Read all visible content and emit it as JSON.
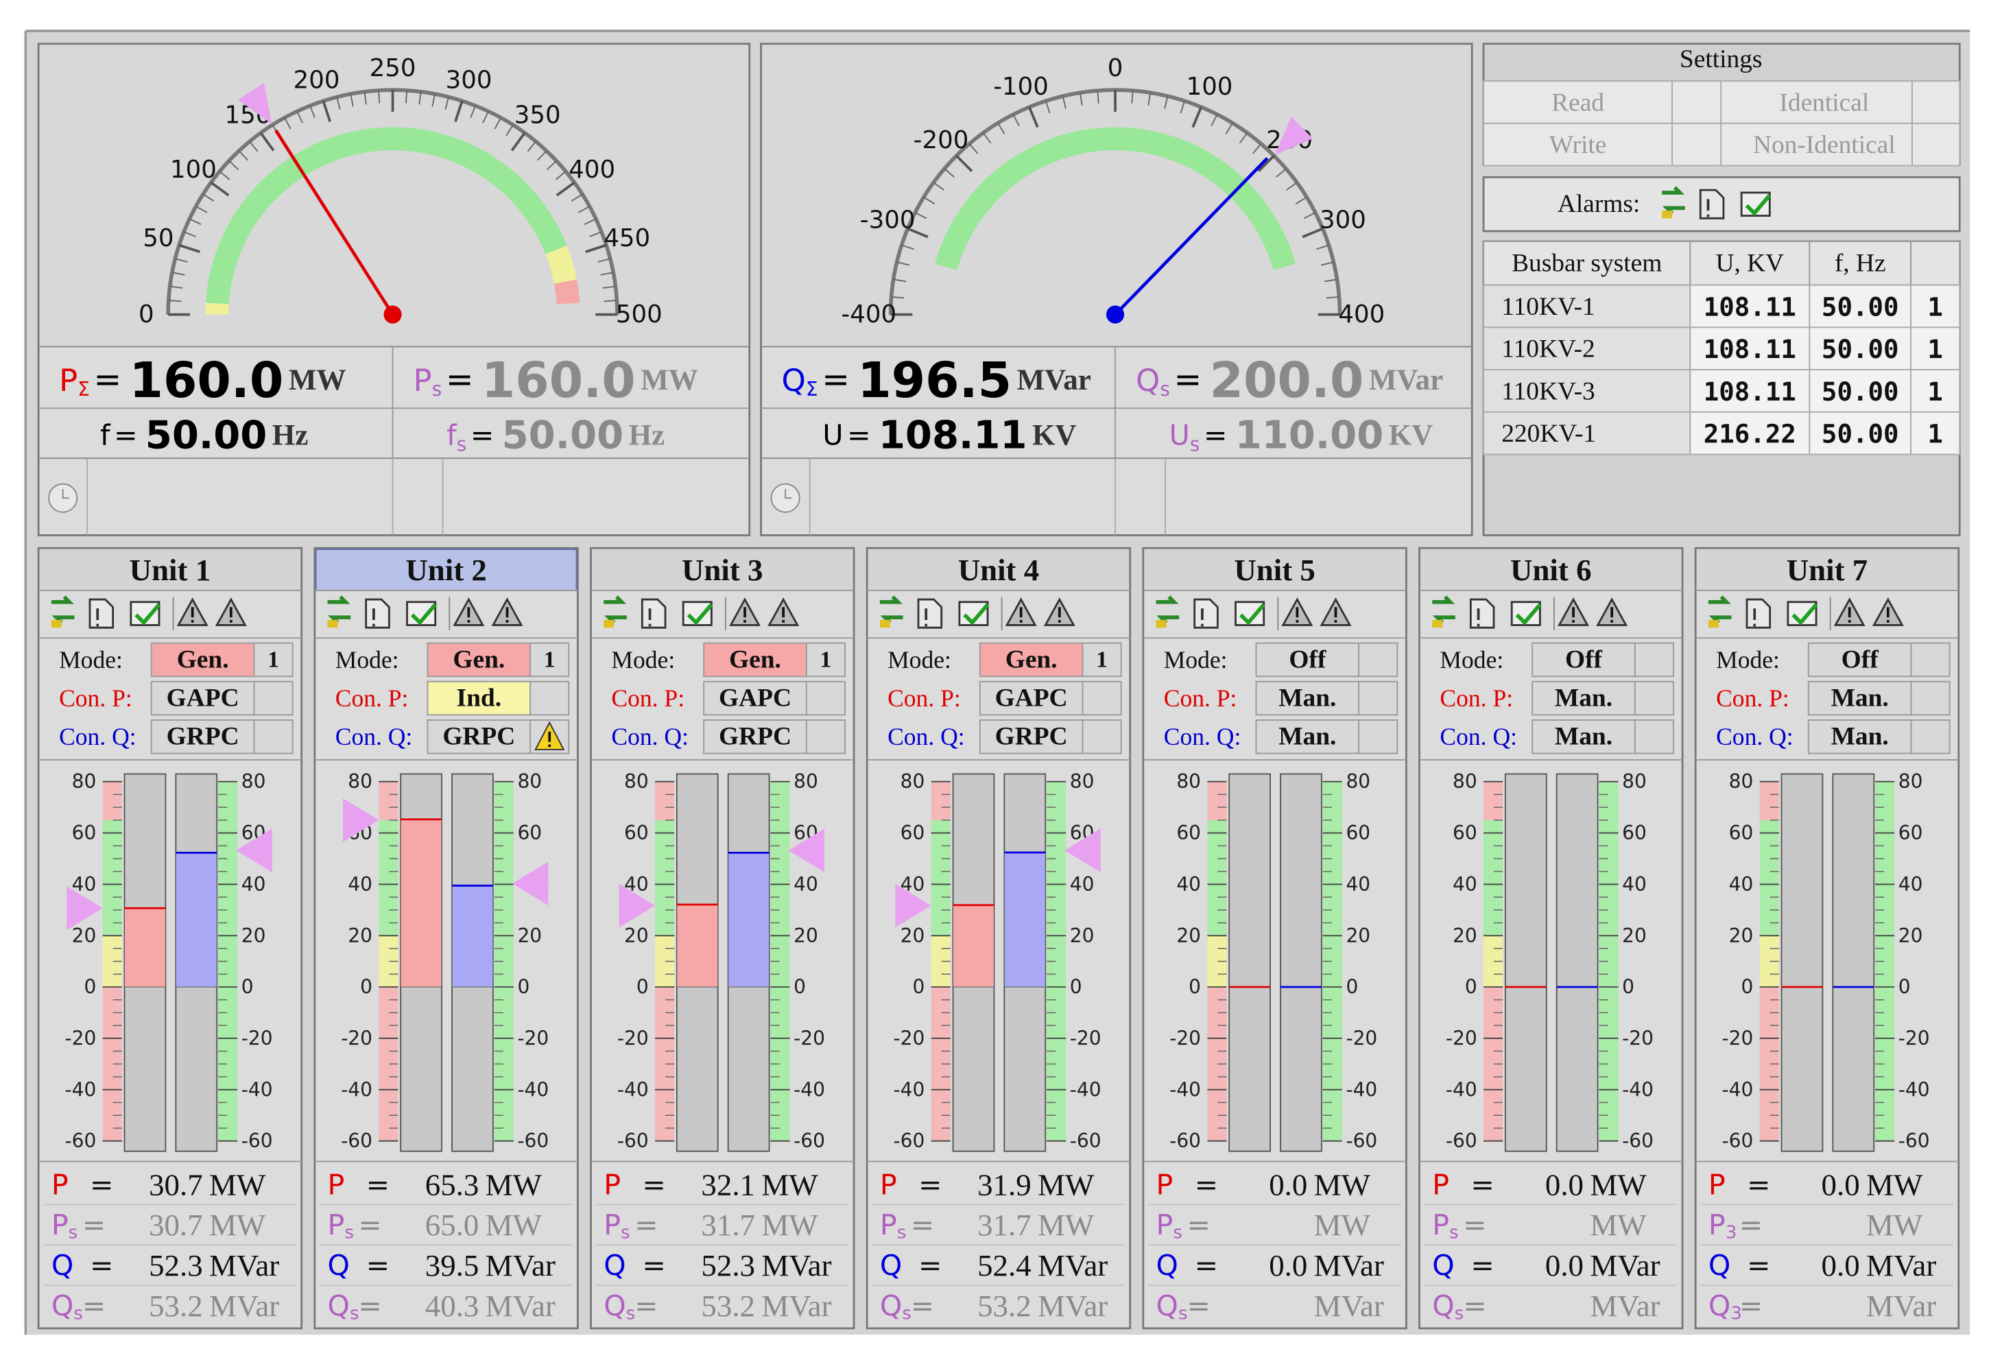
{
  "equals": "=",
  "gauges": [
    {
      "ticks": [
        0,
        50,
        100,
        150,
        200,
        250,
        300,
        350,
        400,
        450,
        500
      ],
      "bands": [
        {
          "from": 10,
          "to": 440,
          "color": "#98e898"
        },
        {
          "from": 0,
          "to": 10,
          "color": "#f0f098"
        },
        {
          "from": 440,
          "to": 470,
          "color": "#f0f098"
        },
        {
          "from": 470,
          "to": 490,
          "color": "#f4a8a8"
        }
      ],
      "needle_color": "#e00000",
      "readouts": [
        {
          "label": "P",
          "sub": "Σ",
          "value": "160.0",
          "unit": "MW",
          "color": "#e00000",
          "value_color": "#000000"
        },
        {
          "label": "P",
          "sub": "s",
          "value": "160.0",
          "unit": "MW",
          "color": "#b060c0",
          "value_color": "#8a8a8a"
        },
        {
          "label": "f",
          "value": "50.00",
          "unit": "Hz",
          "color": "#000000",
          "value_color": "#000000"
        },
        {
          "label": "f",
          "sub": "s",
          "value": "50.00",
          "unit": "Hz",
          "color": "#b060c0",
          "value_color": "#8a8a8a"
        }
      ]
    },
    {
      "ticks": [
        -400,
        -300,
        -200,
        -100,
        0,
        100,
        200,
        300,
        400
      ],
      "bands": [
        {
          "from": -330,
          "to": 330,
          "color": "#98e898"
        }
      ],
      "needle_color": "#0000e0",
      "readouts": [
        {
          "label": "Q",
          "sub": "Σ",
          "value": "196.5",
          "unit": "MVar",
          "color": "#0000e0",
          "value_color": "#000000"
        },
        {
          "label": "Q",
          "sub": "s",
          "value": "200.0",
          "unit": "MVar",
          "color": "#b060c0",
          "value_color": "#8a8a8a"
        },
        {
          "label": "U",
          "value": "108.11",
          "unit": "KV",
          "color": "#000000",
          "value_color": "#000000"
        },
        {
          "label": "U",
          "sub": "s",
          "value": "110.00",
          "unit": "KV",
          "color": "#b060c0",
          "value_color": "#8a8a8a"
        }
      ]
    }
  ],
  "settings": {
    "title": "Settings",
    "items": [
      "Read",
      "Identical",
      "Write",
      "Non-Identical"
    ]
  },
  "alarms_label": "Alarms:",
  "busbar": {
    "headers": [
      "Busbar system",
      "U, KV",
      "f, Hz"
    ],
    "rows": [
      [
        "110KV-1",
        "108.11",
        "50.00",
        "1"
      ],
      [
        "110KV-2",
        "108.11",
        "50.00",
        "1"
      ],
      [
        "110KV-3",
        "108.11",
        "50.00",
        "1"
      ],
      [
        "220KV-1",
        "216.22",
        "50.00",
        "1"
      ]
    ]
  },
  "unit_labels": {
    "mode": "Mode:",
    "con_p": "Con. P:",
    "con_q": "Con. Q:"
  },
  "bar_scale": {
    "ticks": [
      80,
      60,
      40,
      20,
      0,
      -20,
      -40,
      -60
    ],
    "p_bands": [
      {
        "from": -60,
        "to": 0,
        "color": "#f4b8b8"
      },
      {
        "from": 0,
        "to": 20,
        "color": "#f0f0a0"
      },
      {
        "from": 20,
        "to": 65,
        "color": "#a8eca8"
      },
      {
        "from": 65,
        "to": 80,
        "color": "#f4b8b8"
      }
    ],
    "q_bands": [
      {
        "from": -60,
        "to": 80,
        "color": "#a8eca8"
      }
    ],
    "p_color": "#f6a8a8",
    "p_edge": "#e00000",
    "q_color": "#a8a8f4",
    "q_edge": "#0000e0",
    "marker_color": "#e8a0f0"
  },
  "readout_colors": [
    "#e00000",
    "#b060c0",
    "#0000e0",
    "#b060c0"
  ],
  "units": [
    {
      "name": "Unit 1",
      "selected": false,
      "mode": {
        "value": "Gen.",
        "color": "#f6a8a8",
        "count": "1"
      },
      "con_p": {
        "value": "GAPC",
        "color": "#d8d8d8"
      },
      "con_q": {
        "value": "GRPC",
        "color": "#d8d8d8"
      },
      "readouts": [
        {
          "label": "P",
          "value": "30.7",
          "unit": "MW"
        },
        {
          "label": "P",
          "sub": "s",
          "value": "30.7",
          "unit": "MW"
        },
        {
          "label": "Q",
          "value": "52.3",
          "unit": "MVar"
        },
        {
          "label": "Q",
          "sub": "s",
          "value": "53.2",
          "unit": "MVar"
        }
      ]
    },
    {
      "name": "Unit 2",
      "selected": true,
      "mode": {
        "value": "Gen.",
        "color": "#f6a8a8",
        "count": "1"
      },
      "con_p": {
        "value": "Ind.",
        "color": "#f8f4a8"
      },
      "con_q": {
        "value": "GRPC",
        "color": "#d8d8d8",
        "warning": true
      },
      "readouts": [
        {
          "label": "P",
          "value": "65.3",
          "unit": "MW"
        },
        {
          "label": "P",
          "sub": "s",
          "value": "65.0",
          "unit": "MW"
        },
        {
          "label": "Q",
          "value": "39.5",
          "unit": "MVar"
        },
        {
          "label": "Q",
          "sub": "s",
          "value": "40.3",
          "unit": "MVar"
        }
      ]
    },
    {
      "name": "Unit 3",
      "selected": false,
      "mode": {
        "value": "Gen.",
        "color": "#f6a8a8",
        "count": "1"
      },
      "con_p": {
        "value": "GAPC",
        "color": "#d8d8d8"
      },
      "con_q": {
        "value": "GRPC",
        "color": "#d8d8d8"
      },
      "readouts": [
        {
          "label": "P",
          "value": "32.1",
          "unit": "MW"
        },
        {
          "label": "P",
          "sub": "s",
          "value": "31.7",
          "unit": "MW"
        },
        {
          "label": "Q",
          "value": "52.3",
          "unit": "MVar"
        },
        {
          "label": "Q",
          "sub": "s",
          "value": "53.2",
          "unit": "MVar"
        }
      ]
    },
    {
      "name": "Unit 4",
      "selected": false,
      "mode": {
        "value": "Gen.",
        "color": "#f6a8a8",
        "count": "1"
      },
      "con_p": {
        "value": "GAPC",
        "color": "#d8d8d8"
      },
      "con_q": {
        "value": "GRPC",
        "color": "#d8d8d8"
      },
      "readouts": [
        {
          "label": "P",
          "value": "31.9",
          "unit": "MW"
        },
        {
          "label": "P",
          "sub": "s",
          "value": "31.7",
          "unit": "MW"
        },
        {
          "label": "Q",
          "value": "52.4",
          "unit": "MVar"
        },
        {
          "label": "Q",
          "sub": "s",
          "value": "53.2",
          "unit": "MVar"
        }
      ]
    },
    {
      "name": "Unit 5",
      "selected": false,
      "mode": {
        "value": "Off",
        "color": "#d8d8d8"
      },
      "con_p": {
        "value": "Man.",
        "color": "#d8d8d8"
      },
      "con_q": {
        "value": "Man.",
        "color": "#d8d8d8"
      },
      "readouts": [
        {
          "label": "P",
          "value": "0.0",
          "unit": "MW"
        },
        {
          "label": "P",
          "sub": "s",
          "unit": "MW"
        },
        {
          "label": "Q",
          "value": "0.0",
          "unit": "MVar"
        },
        {
          "label": "Q",
          "sub": "s",
          "unit": "MVar"
        }
      ]
    },
    {
      "name": "Unit 6",
      "selected": false,
      "mode": {
        "value": "Off",
        "color": "#d8d8d8"
      },
      "con_p": {
        "value": "Man.",
        "color": "#d8d8d8"
      },
      "con_q": {
        "value": "Man.",
        "color": "#d8d8d8"
      },
      "readouts": [
        {
          "label": "P",
          "value": "0.0",
          "unit": "MW"
        },
        {
          "label": "P",
          "sub": "s",
          "unit": "MW"
        },
        {
          "label": "Q",
          "value": "0.0",
          "unit": "MVar"
        },
        {
          "label": "Q",
          "sub": "s",
          "unit": "MVar"
        }
      ]
    },
    {
      "name": "Unit 7",
      "selected": false,
      "mode": {
        "value": "Off",
        "color": "#d8d8d8"
      },
      "con_p": {
        "value": "Man.",
        "color": "#d8d8d8"
      },
      "con_q": {
        "value": "Man.",
        "color": "#d8d8d8"
      },
      "readouts": [
        {
          "label": "P",
          "value": "0.0",
          "unit": "MW"
        },
        {
          "label": "P",
          "sub": "3",
          "unit": "MW"
        },
        {
          "label": "Q",
          "value": "0.0",
          "unit": "MVar"
        },
        {
          "label": "Q",
          "sub": "3",
          "unit": "MVar"
        }
      ]
    }
  ]
}
